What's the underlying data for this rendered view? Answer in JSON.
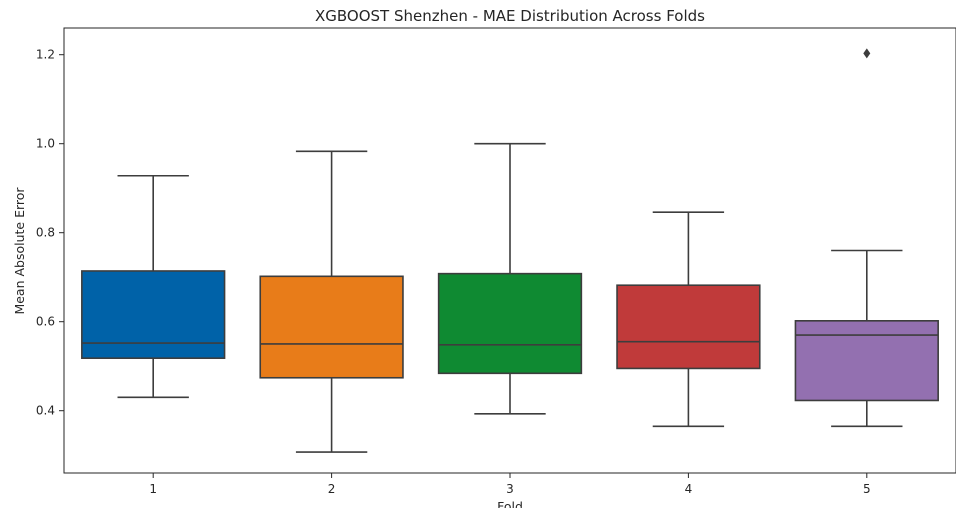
{
  "chart_data": {
    "type": "box",
    "title": "XGBOOST Shenzhen - MAE Distribution Across Folds",
    "xlabel": "Fold",
    "ylabel": "Mean Absolute Error",
    "categories": [
      "1",
      "2",
      "3",
      "4",
      "5"
    ],
    "ylim": [
      0.26,
      1.26
    ],
    "yticks": [
      0.4,
      0.6,
      0.8,
      1.0,
      1.2
    ],
    "ytick_labels": [
      "0.4",
      "0.6",
      "0.8",
      "1.0",
      "1.2"
    ],
    "grid": false,
    "boxes": [
      {
        "category": "1",
        "whisker_low": 0.43,
        "q1": 0.518,
        "median": 0.552,
        "q3": 0.714,
        "whisker_high": 0.928,
        "outliers": [],
        "color": "#0062a8"
      },
      {
        "category": "2",
        "whisker_low": 0.307,
        "q1": 0.474,
        "median": 0.55,
        "q3": 0.702,
        "whisker_high": 0.983,
        "outliers": [],
        "color": "#e87c19"
      },
      {
        "category": "3",
        "whisker_low": 0.393,
        "q1": 0.484,
        "median": 0.548,
        "q3": 0.708,
        "whisker_high": 1.0,
        "outliers": [],
        "color": "#0f8a32"
      },
      {
        "category": "4",
        "whisker_low": 0.365,
        "q1": 0.495,
        "median": 0.555,
        "q3": 0.682,
        "whisker_high": 0.846,
        "outliers": [],
        "color": "#c03a3a"
      },
      {
        "category": "5",
        "whisker_low": 0.365,
        "q1": 0.423,
        "median": 0.57,
        "q3": 0.602,
        "whisker_high": 0.76,
        "outliers": [
          1.203
        ],
        "color": "#9370b0"
      }
    ]
  }
}
